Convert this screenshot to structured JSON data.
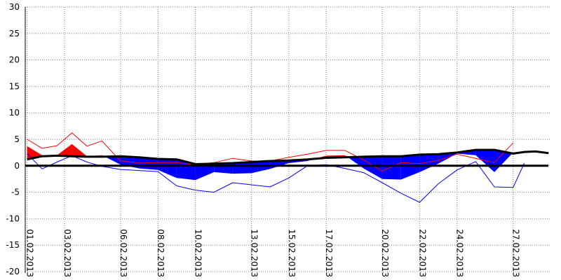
{
  "chart_data": {
    "type": "area",
    "title": "",
    "xlabel": "",
    "ylabel": "",
    "ylim": [
      -20,
      30
    ],
    "y_ticks": [
      "30",
      "25",
      "20",
      "15",
      "10",
      "5",
      "0",
      "-5",
      "-10",
      "-15",
      "-20"
    ],
    "y_tick_values": [
      30,
      25,
      20,
      15,
      10,
      5,
      0,
      -5,
      -10,
      -15,
      -20
    ],
    "x_tick_labels": [
      "01.02.2013",
      "03.02.2013",
      "06.02.2013",
      "08.02.2013",
      "10.02.2013",
      "13.02.2013",
      "15.02.2013",
      "17.02.2013",
      "20.02.2013",
      "22.02.2013",
      "24.02.2013",
      "27.02.2013"
    ],
    "x_tick_days": [
      1,
      3,
      6,
      8,
      10,
      13,
      15,
      17,
      20,
      22,
      24,
      27
    ],
    "grid": "dotted",
    "legend": "none",
    "x_days": [
      1,
      1.8,
      2.6,
      3.4,
      4.2,
      5,
      6,
      7,
      8,
      9,
      10,
      11,
      12,
      13,
      14,
      15,
      16,
      17,
      18,
      19,
      20,
      21,
      22,
      23,
      24,
      25,
      26,
      27,
      27.6,
      28.2,
      28.9
    ],
    "series": [
      {
        "values": [
          1.2,
          1.8,
          1.9,
          1.8,
          1.7,
          1.7,
          1.8,
          1.6,
          1.3,
          1.2,
          0.3,
          0.4,
          0.5,
          0.7,
          0.9,
          1.0,
          1.2,
          1.5,
          1.6,
          1.7,
          1.8,
          1.8,
          2.1,
          2.2,
          2.5,
          3.0,
          3.0,
          2.3,
          2.6,
          2.7,
          2.4
        ]
      },
      {
        "values": [
          3.7,
          2.0,
          2.0,
          4.1,
          1.8,
          2.0,
          0.2,
          -0.5,
          -0.8,
          -2.3,
          -2.7,
          -1.2,
          -1.5,
          -1.4,
          -0.6,
          0.5,
          0.9,
          1.9,
          2.0,
          -0.5,
          -2.5,
          -2.6,
          -1.2,
          0.4,
          2.3,
          2.0,
          -1.2,
          2.5,
          null,
          null,
          null
        ]
      },
      {
        "values": [
          5.0,
          3.3,
          3.8,
          6.2,
          3.7,
          4.7,
          0.9,
          0.5,
          0.6,
          0.6,
          0.2,
          0.6,
          1.4,
          0.9,
          0.9,
          1.6,
          2.2,
          2.9,
          2.9,
          1.1,
          -1.0,
          0.6,
          0.4,
          1.0,
          2.2,
          1.4,
          0.6,
          4.3,
          null,
          null,
          null
        ]
      },
      {
        "values": [
          2.3,
          -0.6,
          0.7,
          1.9,
          0.7,
          -0.1,
          -0.7,
          -0.9,
          -1.1,
          -3.8,
          -4.6,
          -5.0,
          -3.2,
          -3.6,
          -4.0,
          -2.3,
          0.0,
          0.2,
          -0.5,
          -1.3,
          -3.2,
          -5.2,
          -6.9,
          -3.4,
          -0.8,
          0.8,
          -4.0,
          -4.1,
          0.5,
          null,
          null
        ]
      }
    ],
    "colors": {
      "band_above": "#ff0000",
      "band_below": "#0000ff",
      "reference_line": "#000000",
      "upper_line": "#ff0000",
      "lower_line": "#0000ff",
      "zero_line": "#000000",
      "grid": "#808080"
    }
  }
}
